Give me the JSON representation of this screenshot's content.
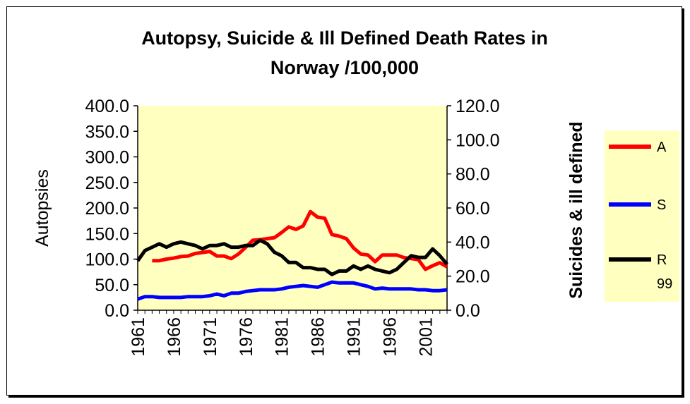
{
  "chart_data": {
    "type": "line",
    "title_line1": "Autopsy, Suicide & Ill Defined Death Rates in",
    "title_line2": "Norway /100,000",
    "ylabel": "Autopsies",
    "y2label": "Suicides & ill defined",
    "ylim": [
      0,
      400
    ],
    "y2lim": [
      0,
      120
    ],
    "yticks": [
      "0.0",
      "50.0",
      "100.0",
      "150.0",
      "200.0",
      "250.0",
      "300.0",
      "350.0",
      "400.0"
    ],
    "y2ticks": [
      "0.0",
      "20.0",
      "40.0",
      "60.0",
      "80.0",
      "100.0",
      "120.0"
    ],
    "xticks": [
      "1961",
      "1966",
      "1971",
      "1976",
      "1981",
      "1986",
      "1991",
      "1996",
      "2001"
    ],
    "x": [
      1961,
      1962,
      1963,
      1964,
      1965,
      1966,
      1967,
      1968,
      1969,
      1970,
      1971,
      1972,
      1973,
      1974,
      1975,
      1976,
      1977,
      1978,
      1979,
      1980,
      1981,
      1982,
      1983,
      1984,
      1985,
      1986,
      1987,
      1988,
      1989,
      1990,
      1991,
      1992,
      1993,
      1994,
      1995,
      1996,
      1997,
      1998,
      1999,
      2000,
      2001,
      2002,
      2003,
      2004
    ],
    "grid": false,
    "legend_position": "right",
    "series": [
      {
        "name": "A",
        "axis": "left",
        "color": "#ff0000",
        "values": [
          null,
          null,
          97,
          97,
          100,
          102,
          105,
          106,
          111,
          113,
          115,
          106,
          106,
          101,
          110,
          123,
          137,
          138,
          140,
          142,
          152,
          163,
          158,
          165,
          193,
          182,
          180,
          148,
          145,
          140,
          122,
          110,
          108,
          95,
          108,
          108,
          108,
          103,
          101,
          99,
          80,
          87,
          93,
          85
        ]
      },
      {
        "name": "S",
        "axis": "right",
        "color": "#0000ff",
        "values": [
          6.5,
          8.0,
          8.0,
          7.5,
          7.5,
          7.5,
          7.5,
          8.0,
          8.0,
          8.0,
          8.5,
          9.5,
          8.5,
          10.0,
          10.0,
          11.0,
          11.5,
          12.0,
          12.0,
          12.0,
          12.5,
          13.5,
          14.0,
          14.5,
          14.0,
          13.5,
          15.0,
          16.5,
          16.0,
          16.0,
          16.0,
          15.0,
          14.0,
          12.5,
          13.0,
          12.5,
          12.5,
          12.5,
          12.5,
          12.0,
          12.0,
          11.5,
          11.5,
          12.0
        ]
      },
      {
        "name": "R 99",
        "name_line1": "R",
        "name_line2": "99",
        "axis": "right",
        "color": "#000000",
        "values": [
          29,
          35,
          37,
          39,
          37,
          39,
          40,
          39,
          38,
          36,
          38,
          38,
          39,
          37,
          37,
          38,
          38,
          41,
          39,
          34,
          32,
          28,
          28,
          25,
          25,
          24,
          24,
          21,
          23,
          23,
          26,
          24,
          26,
          24,
          23,
          22,
          24,
          28,
          32,
          31,
          31,
          36,
          32,
          27
        ]
      }
    ]
  }
}
